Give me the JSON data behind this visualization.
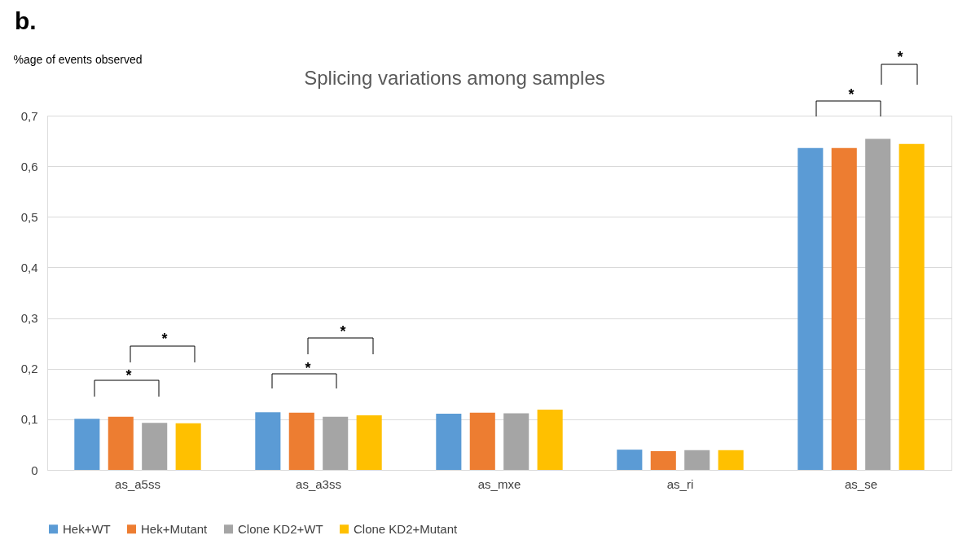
{
  "chart_data": {
    "type": "bar",
    "title": "Splicing variations among samples",
    "ylabel": "%age of events observed",
    "categories": [
      "as_a5ss",
      "as_a3ss",
      "as_mxe",
      "as_ri",
      "as_se"
    ],
    "series": [
      {
        "name": "Hek+WT",
        "color": "#5b9bd5",
        "values": [
          0.101,
          0.114,
          0.111,
          0.04,
          0.636
        ]
      },
      {
        "name": "Hek+Mutant",
        "color": "#ed7d31",
        "values": [
          0.105,
          0.113,
          0.113,
          0.037,
          0.636
        ]
      },
      {
        "name": "Clone KD2+WT",
        "color": "#a5a5a5",
        "values": [
          0.093,
          0.105,
          0.112,
          0.039,
          0.654
        ]
      },
      {
        "name": "Clone KD2+Mutant",
        "color": "#ffc000",
        "values": [
          0.092,
          0.108,
          0.119,
          0.039,
          0.644
        ]
      }
    ],
    "ylim": [
      0,
      0.7
    ],
    "yticks": [
      0,
      {
        "value": 0.1,
        "label": "0,1"
      },
      {
        "value": 0.2,
        "label": "0,2"
      },
      {
        "value": 0.3,
        "label": "0,3"
      },
      {
        "value": 0.4,
        "label": "0,4"
      },
      {
        "value": 0.5,
        "label": "0,5"
      },
      {
        "value": 0.6,
        "label": "0,6"
      },
      {
        "value": 0.7,
        "label": "0,7"
      }
    ],
    "grid": "y",
    "legend": "bottom",
    "annotations": [
      "b.",
      "*",
      "*",
      "*",
      "*",
      "*",
      "*"
    ]
  }
}
